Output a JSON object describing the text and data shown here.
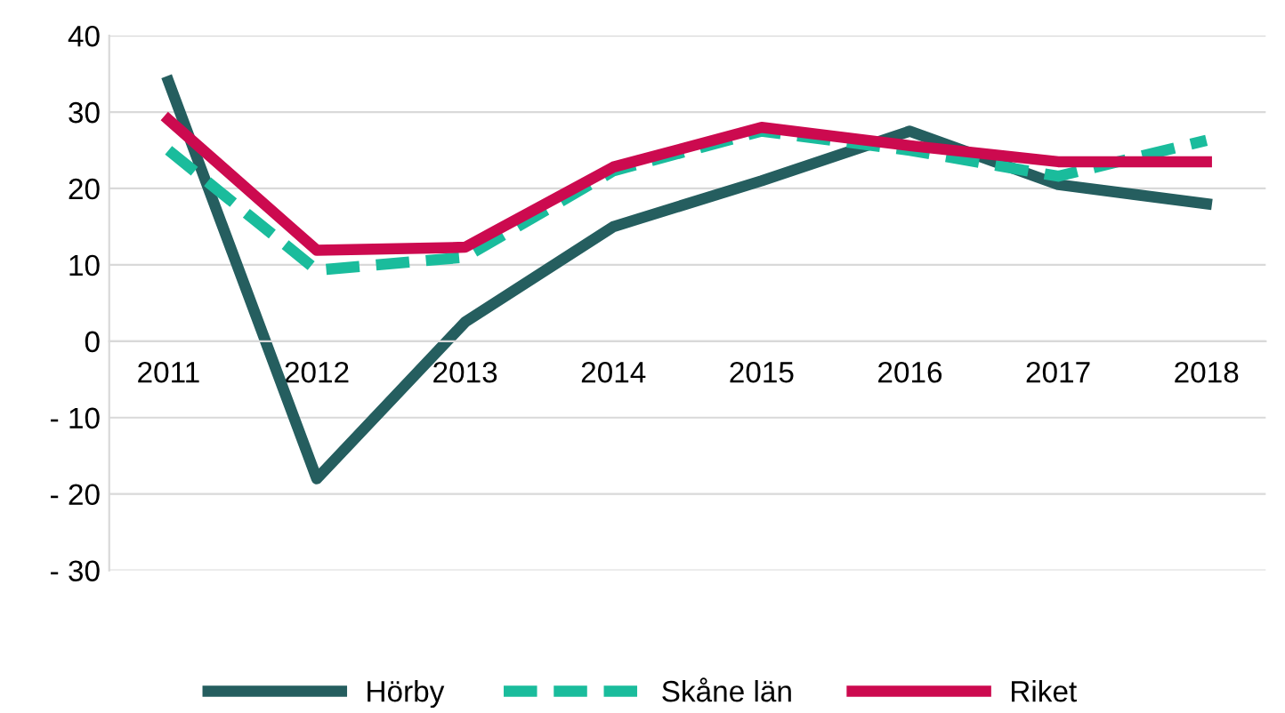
{
  "chart_data": {
    "type": "line",
    "categories": [
      "2011",
      "2012",
      "2013",
      "2014",
      "2015",
      "2016",
      "2017",
      "2018"
    ],
    "series": [
      {
        "name": "Hörby",
        "color": "#255e5f",
        "values": [
          34,
          -18,
          2.5,
          15,
          21,
          27.5,
          20.5,
          18
        ],
        "line_style": "solid"
      },
      {
        "name": "Skåne län",
        "color": "#1abc9c",
        "values": [
          25,
          9.3,
          11,
          22.3,
          27.5,
          25,
          21.6,
          26.3
        ],
        "line_style": "dashed"
      },
      {
        "name": "Riket",
        "color": "#cc0a4f",
        "values": [
          29,
          11.9,
          12.3,
          22.8,
          28,
          25.6,
          23.5,
          23.5
        ],
        "line_style": "solid"
      }
    ],
    "ylim": [
      -30,
      40
    ],
    "yticks": [
      {
        "value": -30,
        "label": "- 30"
      },
      {
        "value": -20,
        "label": "- 20"
      },
      {
        "value": -10,
        "label": "- 10"
      },
      0,
      10,
      20,
      30,
      40
    ],
    "grid": "y",
    "legend": "bottom",
    "marker": "none"
  }
}
